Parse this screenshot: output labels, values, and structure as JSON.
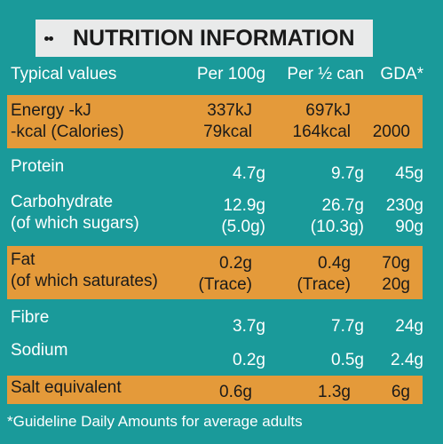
{
  "banner": {
    "title": "NUTRITION INFORMATION",
    "icon": "dots-icon"
  },
  "header": {
    "label": "Typical values",
    "per100": "Per 100g",
    "perhalf": "Per ½ can",
    "gda": "GDA*"
  },
  "rows": {
    "energy": {
      "l1": "Energy -kJ",
      "l2": "-kcal (Calories)",
      "a1": "337kJ",
      "a2": "79kcal",
      "b1": "697kJ",
      "b2": "164kcal",
      "g2": "2000"
    },
    "protein": {
      "l1": "Protein",
      "a1": "4.7g",
      "b1": "9.7g",
      "g1": "45g"
    },
    "carb": {
      "l1": "Carbohydrate",
      "l2": "(of which sugars)",
      "a1": "12.9g",
      "a2": "(5.0g)",
      "b1": "26.7g",
      "b2": "(10.3g)",
      "g1": "230g",
      "g2": "90g"
    },
    "fat": {
      "l1": "Fat",
      "l2": "(of which saturates)",
      "a1": "0.2g",
      "a2": "(Trace)",
      "b1": "0.4g",
      "b2": "(Trace)",
      "g1": "70g",
      "g2": "20g"
    },
    "fibre": {
      "l1": "Fibre",
      "a1": "3.7g",
      "b1": "7.7g",
      "g1": "24g"
    },
    "sodium": {
      "l1": "Sodium",
      "a1": "0.2g",
      "b1": "0.5g",
      "g1": "2.4g"
    },
    "salt": {
      "l1": "Salt equivalent",
      "a1": "0.6g",
      "b1": "1.3g",
      "g1": "6g"
    }
  },
  "footnote": "*Guideline Daily Amounts for average adults",
  "colors": {
    "background": "#1a9a9a",
    "band": "#e49a3a",
    "banner": "#e9eaea"
  }
}
